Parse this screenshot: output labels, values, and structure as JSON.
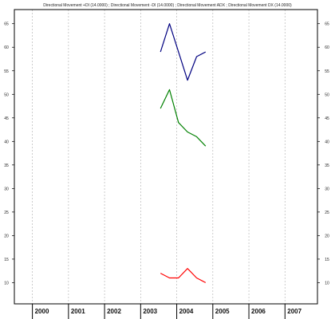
{
  "chart_data": {
    "type": "line",
    "title": "Directional Movement +DI (14.0000) ; Directional Movement -DI (14.0000) ; Directional Movement ADX ; Directional Movement DX (14.0000)",
    "xlabel": "",
    "ylabel": "",
    "x_ticks": [
      "2000",
      "2001",
      "2002",
      "2003",
      "2004",
      "2005",
      "2006",
      "2007"
    ],
    "x_tick_values": [
      2000,
      2001,
      2002,
      2003,
      2004,
      2005,
      2006,
      2007
    ],
    "xlim": [
      1999.5,
      2007.9
    ],
    "y_ticks": [
      10,
      15,
      20,
      25,
      30,
      35,
      40,
      45,
      50,
      55,
      60,
      65
    ],
    "ylim": [
      5.5,
      68
    ],
    "grid": {
      "vertical": true,
      "horizontal": false
    },
    "legend": "none",
    "series": [
      {
        "color": "#000080",
        "x": [
          2003.55,
          2003.8,
          2004.05,
          2004.3,
          2004.55,
          2004.8
        ],
        "values": [
          59,
          65,
          59,
          53,
          58,
          59
        ]
      },
      {
        "color": "#008000",
        "x": [
          2003.55,
          2003.8,
          2004.05,
          2004.3,
          2004.55,
          2004.8
        ],
        "values": [
          47,
          51,
          44,
          42,
          41,
          39
        ]
      },
      {
        "color": "#ff0000",
        "x": [
          2003.55,
          2003.8,
          2004.05,
          2004.3,
          2004.55,
          2004.8
        ],
        "values": [
          12,
          11,
          11,
          13,
          11,
          10
        ]
      }
    ]
  }
}
